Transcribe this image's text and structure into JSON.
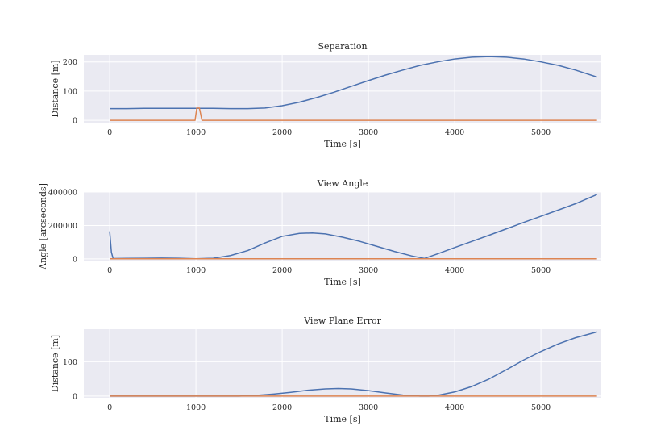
{
  "chart_data": [
    {
      "type": "line",
      "title": "Separation",
      "xlabel": "Time [s]",
      "ylabel": "Distance [m]",
      "xlim": [
        -300,
        5700
      ],
      "ylim": [
        -8,
        224
      ],
      "xticks": [
        0,
        1000,
        2000,
        3000,
        4000,
        5000
      ],
      "yticks": [
        0,
        100,
        200
      ],
      "grid": true,
      "series": [
        {
          "color": "#4c72b0",
          "x": [
            0,
            200,
            400,
            600,
            800,
            1000,
            1200,
            1400,
            1600,
            1800,
            2000,
            2200,
            2400,
            2600,
            2800,
            3000,
            3200,
            3400,
            3600,
            3800,
            4000,
            4200,
            4400,
            4600,
            4800,
            5000,
            5200,
            5400,
            5650
          ],
          "y": [
            40,
            40,
            41,
            41,
            41,
            41,
            41,
            40,
            40,
            42,
            50,
            62,
            78,
            96,
            116,
            136,
            155,
            172,
            188,
            200,
            210,
            216,
            218,
            216,
            210,
            200,
            188,
            172,
            148
          ]
        },
        {
          "color": "#dd8452",
          "x": [
            0,
            990,
            1010,
            1040,
            1070,
            5650
          ],
          "y": [
            0,
            0,
            42,
            42,
            0,
            0
          ]
        }
      ]
    },
    {
      "type": "line",
      "title": "View Angle",
      "xlabel": "Time [s]",
      "ylabel": "Angle [arcseconds]",
      "xlim": [
        -300,
        5700
      ],
      "ylim": [
        -10000,
        400000
      ],
      "xticks": [
        0,
        1000,
        2000,
        3000,
        4000,
        5000
      ],
      "yticks": [
        0,
        200000,
        400000
      ],
      "grid": true,
      "series": [
        {
          "color": "#4c72b0",
          "x": [
            0,
            20,
            40,
            200,
            400,
            600,
            800,
            1000,
            1200,
            1400,
            1600,
            1800,
            2000,
            2200,
            2350,
            2500,
            2700,
            2900,
            3100,
            3300,
            3500,
            3650,
            3800,
            4000,
            4200,
            4400,
            4600,
            4800,
            5000,
            5200,
            5400,
            5650
          ],
          "y": [
            165000,
            40000,
            2000,
            3000,
            4000,
            5000,
            4000,
            1000,
            4000,
            20000,
            50000,
            95000,
            135000,
            153000,
            155000,
            150000,
            130000,
            105000,
            75000,
            45000,
            18000,
            3000,
            30000,
            68000,
            105000,
            142000,
            180000,
            218000,
            255000,
            292000,
            330000,
            385000
          ]
        },
        {
          "color": "#dd8452",
          "x": [
            0,
            5650
          ],
          "y": [
            1000,
            1000
          ]
        }
      ]
    },
    {
      "type": "line",
      "title": "View Plane Error",
      "xlabel": "Time [s]",
      "ylabel": "Distance [m]",
      "xlim": [
        -300,
        5700
      ],
      "ylim": [
        -5,
        195
      ],
      "xticks": [
        0,
        1000,
        2000,
        3000,
        4000,
        5000
      ],
      "yticks": [
        0,
        100
      ],
      "grid": true,
      "series": [
        {
          "color": "#4c72b0",
          "x": [
            0,
            500,
            1000,
            1500,
            1700,
            1900,
            2100,
            2300,
            2500,
            2650,
            2800,
            3000,
            3200,
            3400,
            3600,
            3700,
            3800,
            4000,
            4200,
            4400,
            4600,
            4800,
            5000,
            5200,
            5400,
            5650
          ],
          "y": [
            0,
            0,
            0,
            0,
            2,
            6,
            11,
            17,
            21,
            22,
            21,
            16,
            9,
            3,
            0,
            0,
            2,
            12,
            28,
            50,
            77,
            105,
            130,
            152,
            170,
            187
          ]
        },
        {
          "color": "#dd8452",
          "x": [
            0,
            5650
          ],
          "y": [
            0,
            0
          ]
        }
      ]
    }
  ]
}
